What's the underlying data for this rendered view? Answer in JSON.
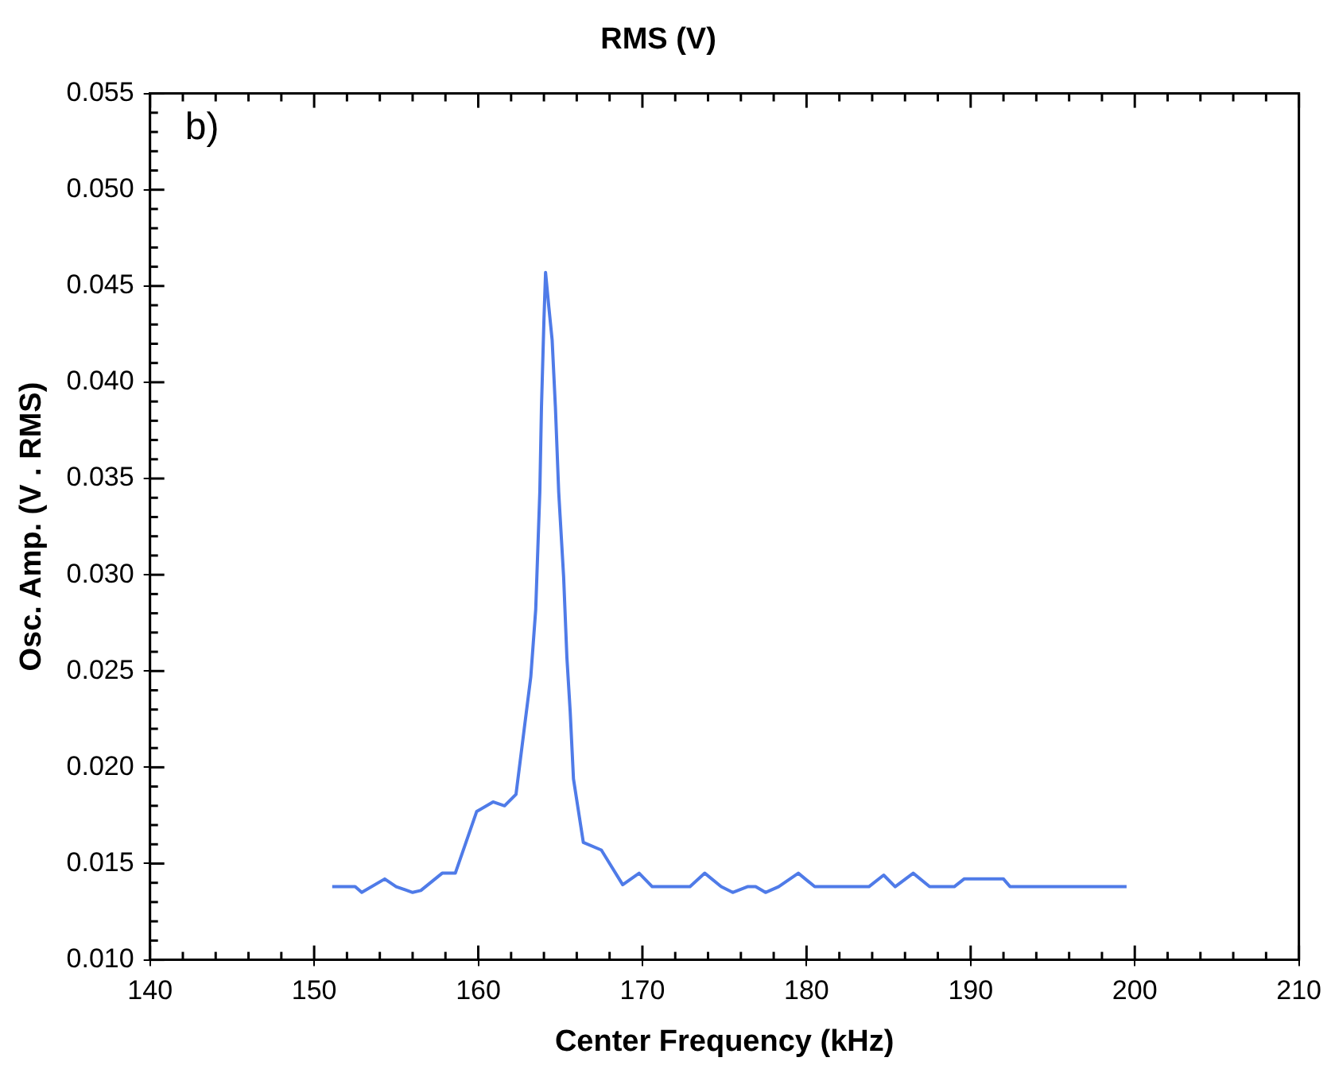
{
  "chart_data": {
    "type": "line",
    "title": "RMS (V)",
    "xlabel": "Center Frequency (kHz)",
    "ylabel": "Osc. Amp. (V . RMS)",
    "annotations": [
      "b)"
    ],
    "x": [
      151.1,
      152.5,
      152.9,
      154.3,
      155,
      156,
      156.5,
      157.8,
      158.6,
      159.9,
      160.9,
      161.6,
      162.3,
      162.8,
      163.2,
      163.5,
      163.75,
      163.85,
      164,
      164.1,
      164.3,
      164.5,
      164.7,
      164.9,
      165.2,
      165.4,
      165.6,
      165.8,
      166.4,
      167.5,
      168.8,
      169.8,
      170.6,
      172.9,
      173.8,
      174.8,
      175.5,
      176.4,
      176.9,
      177.5,
      178.3,
      179.5,
      180.5,
      183.8,
      184.7,
      185.4,
      186.5,
      187.5,
      189,
      189.6,
      192,
      192.4,
      199.5
    ],
    "series": [
      {
        "color": "#4f7be8",
        "values": [
          0.0138,
          0.0138,
          0.0135,
          0.0142,
          0.0138,
          0.0135,
          0.0136,
          0.0145,
          0.0145,
          0.0177,
          0.0182,
          0.018,
          0.0186,
          0.022,
          0.0247,
          0.0282,
          0.0343,
          0.0387,
          0.0432,
          0.0457,
          0.0439,
          0.0422,
          0.0387,
          0.0343,
          0.0299,
          0.0257,
          0.0229,
          0.0194,
          0.0161,
          0.0157,
          0.0139,
          0.0145,
          0.0138,
          0.0138,
          0.0145,
          0.0138,
          0.0135,
          0.0138,
          0.0138,
          0.0135,
          0.0138,
          0.0145,
          0.0138,
          0.0138,
          0.0144,
          0.0138,
          0.0145,
          0.0138,
          0.0138,
          0.0142,
          0.0142,
          0.0138,
          0.0138
        ]
      }
    ],
    "xlim": [
      140,
      210
    ],
    "xticks": [
      140,
      150,
      160,
      170,
      180,
      190,
      200,
      210
    ],
    "ylim": [
      0.01,
      0.055
    ],
    "yticks": [
      {
        "value": 0.01,
        "label": "0.010"
      },
      {
        "value": 0.015,
        "label": "0.015"
      },
      {
        "value": 0.02,
        "label": "0.020"
      },
      {
        "value": 0.025,
        "label": "0.025"
      },
      {
        "value": 0.03,
        "label": "0.030"
      },
      {
        "value": 0.035,
        "label": "0.035"
      },
      {
        "value": 0.04,
        "label": "0.040"
      },
      {
        "value": 0.045,
        "label": "0.045"
      },
      {
        "value": 0.05,
        "label": "0.050"
      },
      {
        "value": 0.055,
        "label": "0.055"
      }
    ],
    "grid": false,
    "legend": false,
    "marker": "none",
    "line_style": "solid"
  }
}
